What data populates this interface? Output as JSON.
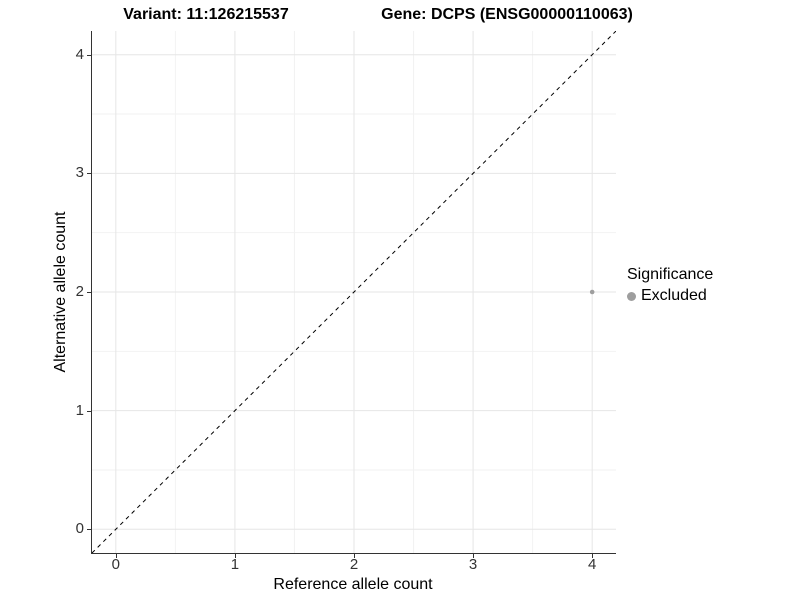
{
  "chart_data": {
    "type": "scatter",
    "title_left": "Variant: 11:126215537",
    "title_right": "Gene: DCPS (ENSG00000110063)",
    "xlabel": "Reference allele count",
    "ylabel": "Alternative allele count",
    "xlim": [
      -0.2,
      4.2
    ],
    "ylim": [
      -0.2,
      4.2
    ],
    "x_ticks": [
      0,
      1,
      2,
      3,
      4
    ],
    "y_ticks": [
      0,
      1,
      2,
      3,
      4
    ],
    "grid": true,
    "minor_grid": true,
    "abline": {
      "slope": 1,
      "intercept": 0,
      "style": "dashed",
      "color": "#000000"
    },
    "series": [
      {
        "name": "Excluded",
        "color": "#9e9e9e",
        "points": [
          {
            "x": 4,
            "y": 2
          }
        ]
      }
    ],
    "legend": {
      "title": "Significance",
      "position": "right",
      "items": [
        {
          "label": "Excluded",
          "color": "#9e9e9e"
        }
      ]
    }
  },
  "colors": {
    "background": "#ffffff",
    "grid_major": "#e6e6e6",
    "grid_minor": "#f2f2f2",
    "axis_line": "#333333",
    "tick_label": "#333333",
    "title_text": "#000000"
  }
}
